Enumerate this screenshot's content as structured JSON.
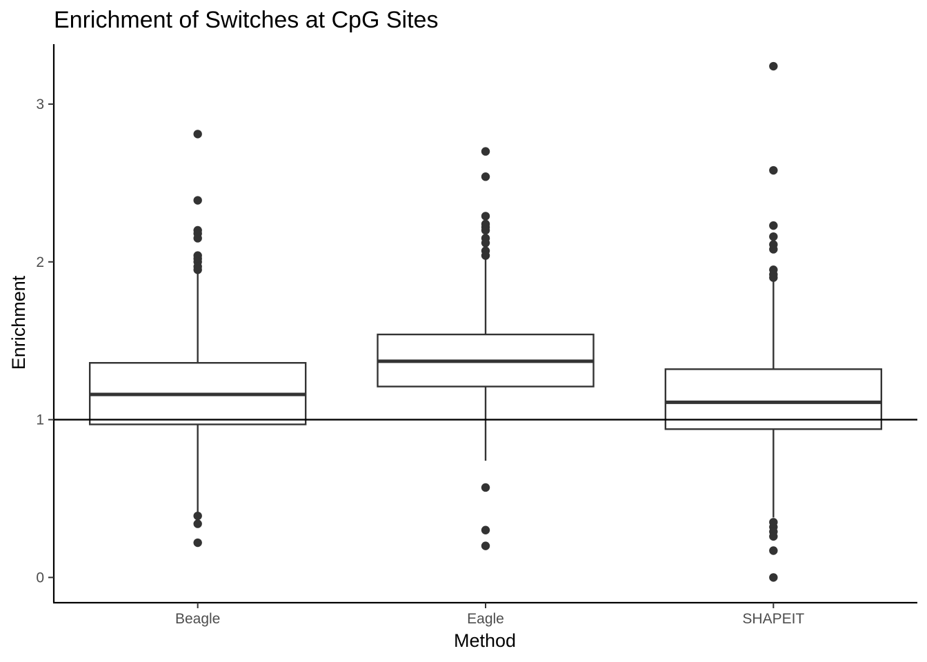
{
  "chart_data": {
    "type": "box",
    "title": "Enrichment of Switches at CpG Sites",
    "xlabel": "Method",
    "ylabel": "Enrichment",
    "categories": [
      "Beagle",
      "Eagle",
      "SHAPEIT"
    ],
    "ylim": [
      -0.16,
      3.38
    ],
    "yticks": [
      0,
      1,
      2,
      3
    ],
    "yticks_labels": [
      "0",
      "1",
      "2",
      "3"
    ],
    "reference_line": 1,
    "grid": false,
    "boxes": [
      {
        "name": "Beagle",
        "q1": 0.97,
        "median": 1.16,
        "q3": 1.36,
        "whisker_low": 0.4,
        "whisker_high": 1.94,
        "outliers": [
          2.81,
          2.39,
          2.2,
          2.18,
          2.15,
          2.04,
          2.02,
          2.0,
          1.97,
          1.95,
          0.39,
          0.34,
          0.22
        ]
      },
      {
        "name": "Eagle",
        "q1": 1.21,
        "median": 1.37,
        "q3": 1.54,
        "whisker_low": 0.74,
        "whisker_high": 2.02,
        "outliers": [
          2.7,
          2.54,
          2.29,
          2.24,
          2.22,
          2.2,
          2.15,
          2.12,
          2.07,
          2.04,
          0.57,
          0.3,
          0.2
        ]
      },
      {
        "name": "SHAPEIT",
        "q1": 0.94,
        "median": 1.11,
        "q3": 1.32,
        "whisker_low": 0.38,
        "whisker_high": 1.88,
        "outliers": [
          3.24,
          2.58,
          2.23,
          2.16,
          2.11,
          2.08,
          1.95,
          1.92,
          1.9,
          0.35,
          0.32,
          0.29,
          0.26,
          0.17,
          0.0
        ]
      }
    ]
  }
}
